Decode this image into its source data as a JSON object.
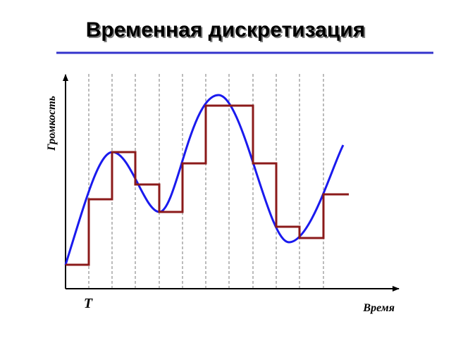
{
  "header": {
    "title": "Временная дискретизация"
  },
  "diagram": {
    "y_axis_label": "Громкость",
    "x_axis_label": "Время",
    "period_label": "T"
  }
}
